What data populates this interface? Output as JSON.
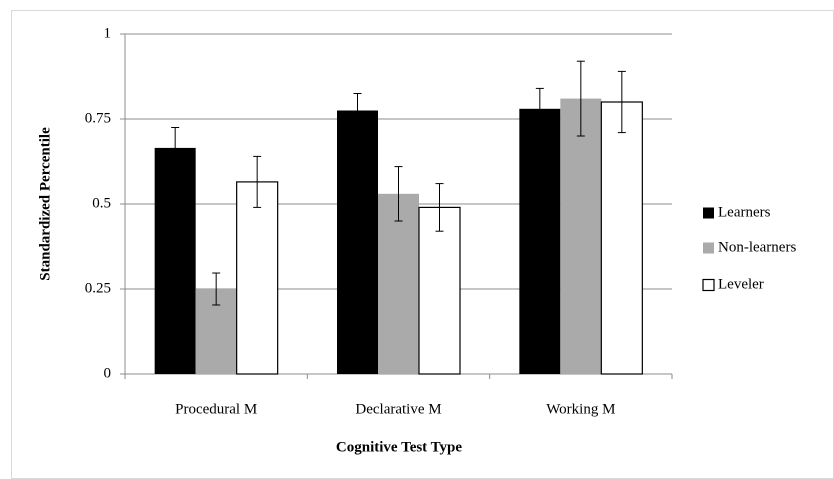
{
  "chart_data": {
    "type": "bar",
    "x_label": "Cognitive Test Type",
    "y_label": "Standardized Percentile",
    "categories": [
      "Procedural M",
      "Declarative M",
      "Working M"
    ],
    "series": [
      {
        "name": "Learners",
        "color": "#000000",
        "values": [
          0.665,
          0.775,
          0.78
        ],
        "errors": [
          0.06,
          0.05,
          0.06
        ]
      },
      {
        "name": "Non-learners",
        "color": "#aaaaaa",
        "values": [
          0.25,
          0.53,
          0.81
        ],
        "errors": [
          0.047,
          0.08,
          0.11
        ]
      },
      {
        "name": "Leveler",
        "color": "#ffffff",
        "values": [
          0.565,
          0.49,
          0.8
        ],
        "errors": [
          0.075,
          0.07,
          0.09
        ]
      }
    ],
    "ylim": [
      0,
      1
    ],
    "yticks": [
      0,
      0.25,
      0.5,
      0.75,
      1
    ],
    "grid": true,
    "legend": "right"
  }
}
